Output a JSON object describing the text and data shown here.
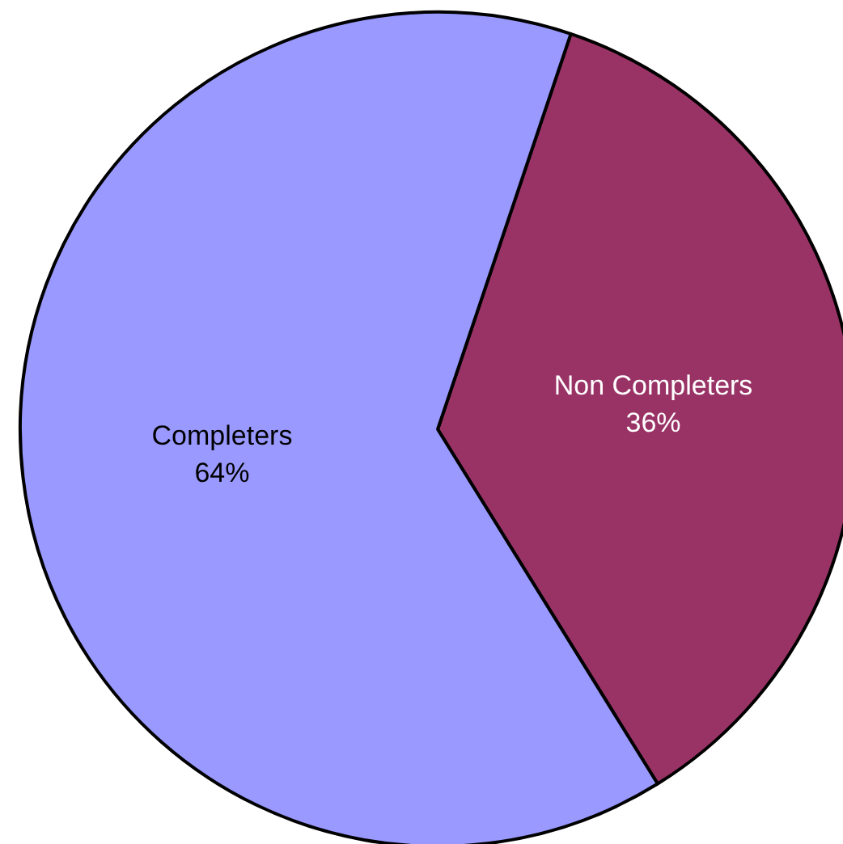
{
  "chart_data": {
    "type": "pie",
    "categories": [
      "Non Completers",
      "Completers"
    ],
    "values": [
      36,
      64
    ],
    "value_labels": [
      "36%",
      "64%"
    ],
    "colors": [
      "#993366",
      "#9999ff"
    ]
  }
}
